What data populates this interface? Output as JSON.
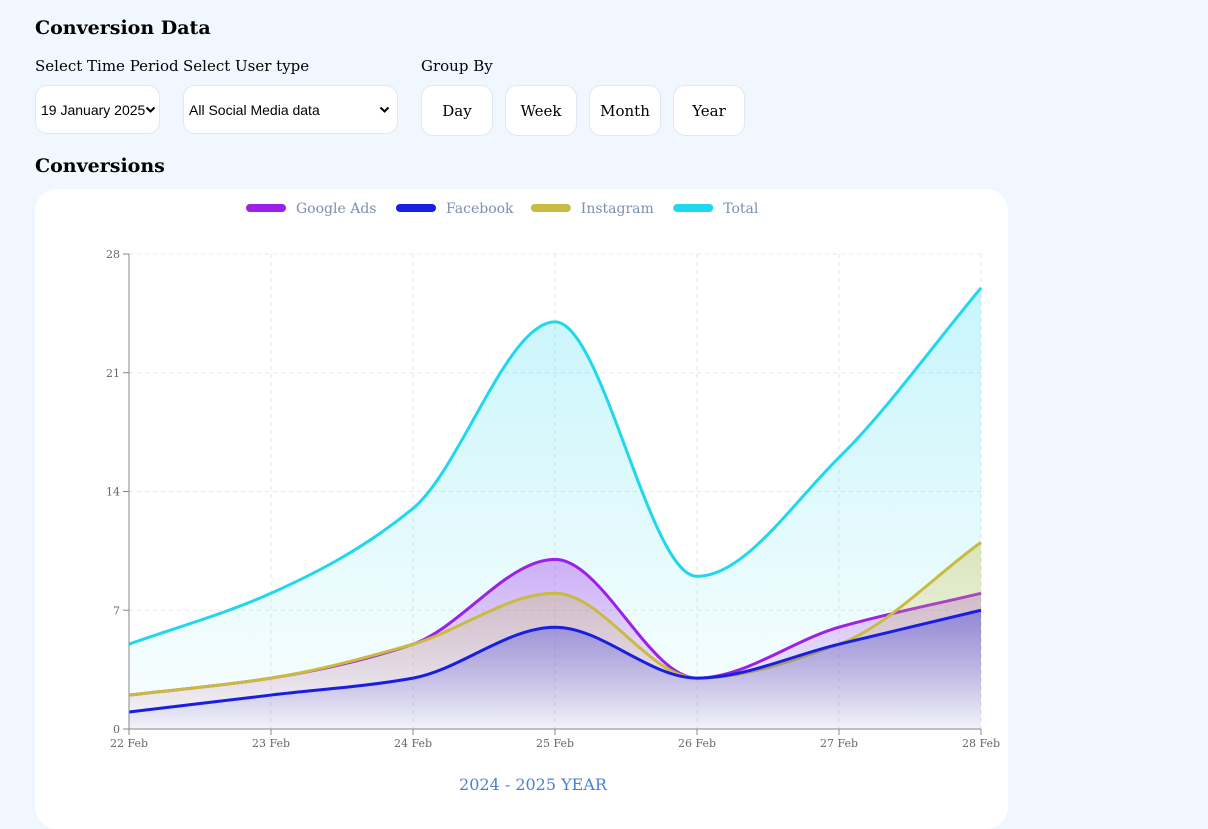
{
  "header": {
    "title": "Conversion Data"
  },
  "filters": {
    "time_period": {
      "label": "Select Time Period",
      "value": "19 January 2025"
    },
    "user_type": {
      "label": "Select User type",
      "value": "All Social Media data"
    },
    "group_by": {
      "label": "Group By",
      "options": [
        "Day",
        "Week",
        "Month",
        "Year"
      ]
    }
  },
  "section": {
    "title": "Conversions"
  },
  "chart_data": {
    "type": "area",
    "categories": [
      "22 Feb",
      "23 Feb",
      "24 Feb",
      "25 Feb",
      "26 Feb",
      "27 Feb",
      "28 Feb"
    ],
    "series": [
      {
        "name": "Google Ads",
        "color": "#9b20e8",
        "values": [
          2,
          3,
          5,
          10,
          3,
          6,
          8
        ]
      },
      {
        "name": "Facebook",
        "color": "#1a1ee0",
        "values": [
          1,
          2,
          3,
          6,
          3,
          5,
          7
        ]
      },
      {
        "name": "Instagram",
        "color": "#c9bb42",
        "values": [
          2,
          3,
          5,
          8,
          3,
          5,
          11
        ]
      },
      {
        "name": "Total",
        "color": "#1fd7ee",
        "values": [
          5,
          8,
          13,
          24,
          9,
          16,
          26
        ]
      }
    ],
    "ylim": [
      0,
      28
    ],
    "yticks": [
      0,
      7,
      14,
      21,
      28
    ],
    "xlabel": "2024 - 2025 YEAR",
    "ylabel": "",
    "grid": true,
    "legend": "top"
  }
}
